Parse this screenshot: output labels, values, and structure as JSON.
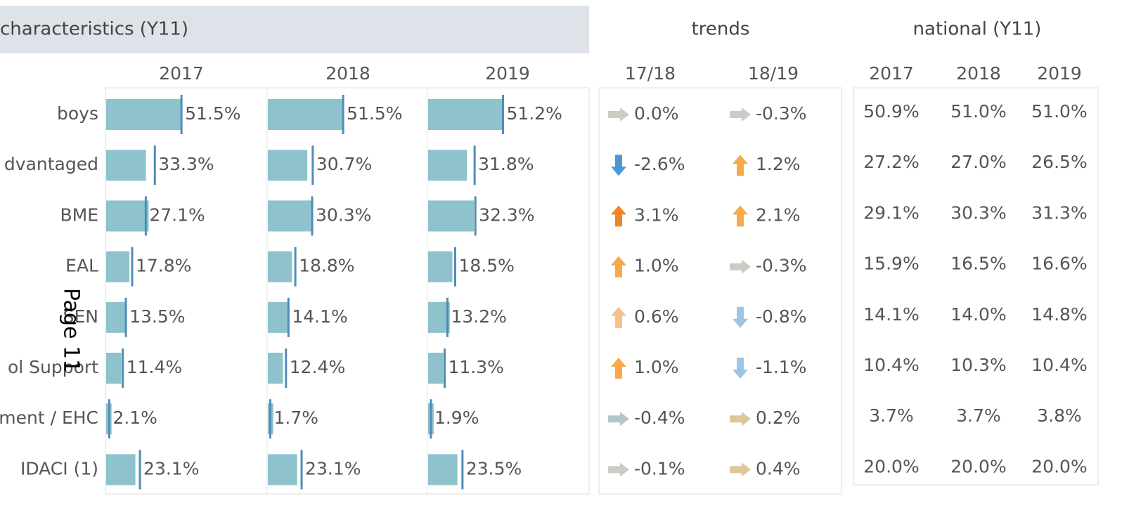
{
  "header": {
    "title": "characteristics (Y11)",
    "trends": "trends",
    "national": "national (Y11)"
  },
  "columns": {
    "school": [
      "2017",
      "2018",
      "2019"
    ],
    "trends": [
      "17/18",
      "18/19"
    ],
    "national": [
      "2017",
      "2018",
      "2019"
    ]
  },
  "rows": [
    {
      "label": "boys",
      "values": [
        51.5,
        51.5,
        51.2
      ],
      "value_labels": [
        "51.5%",
        "51.5%",
        "51.2%"
      ],
      "trends": [
        0.0,
        -0.3
      ],
      "trend_labels": [
        "0.0%",
        "-0.3%"
      ],
      "national": [
        50.9,
        51.0,
        51.0
      ],
      "national_labels": [
        "50.9%",
        "51.0%",
        "51.0%"
      ]
    },
    {
      "label": "dvantaged",
      "values": [
        33.3,
        30.7,
        31.8
      ],
      "value_labels": [
        "33.3%",
        "30.7%",
        "31.8%"
      ],
      "trends": [
        -2.6,
        1.2
      ],
      "trend_labels": [
        "-2.6%",
        "1.2%"
      ],
      "national": [
        27.2,
        27.0,
        26.5
      ],
      "national_labels": [
        "27.2%",
        "27.0%",
        "26.5%"
      ]
    },
    {
      "label": "BME",
      "values": [
        27.1,
        30.3,
        32.3
      ],
      "value_labels": [
        "27.1%",
        "30.3%",
        "32.3%"
      ],
      "trends": [
        3.1,
        2.1
      ],
      "trend_labels": [
        "3.1%",
        "2.1%"
      ],
      "national": [
        29.1,
        30.3,
        31.3
      ],
      "national_labels": [
        "29.1%",
        "30.3%",
        "31.3%"
      ]
    },
    {
      "label": "EAL",
      "values": [
        17.8,
        18.8,
        18.5
      ],
      "value_labels": [
        "17.8%",
        "18.8%",
        "18.5%"
      ],
      "trends": [
        1.0,
        -0.3
      ],
      "trend_labels": [
        "1.0%",
        "-0.3%"
      ],
      "national": [
        15.9,
        16.5,
        16.6
      ],
      "national_labels": [
        "15.9%",
        "16.5%",
        "16.6%"
      ]
    },
    {
      "label": "SEN",
      "values": [
        13.5,
        14.1,
        13.2
      ],
      "value_labels": [
        "13.5%",
        "14.1%",
        "13.2%"
      ],
      "trends": [
        0.6,
        -0.8
      ],
      "trend_labels": [
        "0.6%",
        "-0.8%"
      ],
      "national": [
        14.1,
        14.0,
        14.8
      ],
      "national_labels": [
        "14.1%",
        "14.0%",
        "14.8%"
      ]
    },
    {
      "label": "ol Support",
      "values": [
        11.4,
        12.4,
        11.3
      ],
      "value_labels": [
        "11.4%",
        "12.4%",
        "11.3%"
      ],
      "trends": [
        1.0,
        -1.1
      ],
      "trend_labels": [
        "1.0%",
        "-1.1%"
      ],
      "national": [
        10.4,
        10.3,
        10.4
      ],
      "national_labels": [
        "10.4%",
        "10.3%",
        "10.4%"
      ]
    },
    {
      "label": "ment / EHC",
      "values": [
        2.1,
        1.7,
        1.9
      ],
      "value_labels": [
        "2.1%",
        "1.7%",
        "1.9%"
      ],
      "trends": [
        -0.4,
        0.2
      ],
      "trend_labels": [
        "-0.4%",
        "0.2%"
      ],
      "national": [
        3.7,
        3.7,
        3.8
      ],
      "national_labels": [
        "3.7%",
        "3.7%",
        "3.8%"
      ]
    },
    {
      "label": "IDACI (1)",
      "values": [
        23.1,
        23.1,
        23.5
      ],
      "value_labels": [
        "23.1%",
        "23.1%",
        "23.5%"
      ],
      "trends": [
        -0.1,
        0.4
      ],
      "trend_labels": [
        "-0.1%",
        "0.4%"
      ],
      "national": [
        20.0,
        20.0,
        20.0
      ],
      "national_labels": [
        "20.0%",
        "20.0%",
        "20.0%"
      ]
    }
  ],
  "overlay": "Page 11"
}
